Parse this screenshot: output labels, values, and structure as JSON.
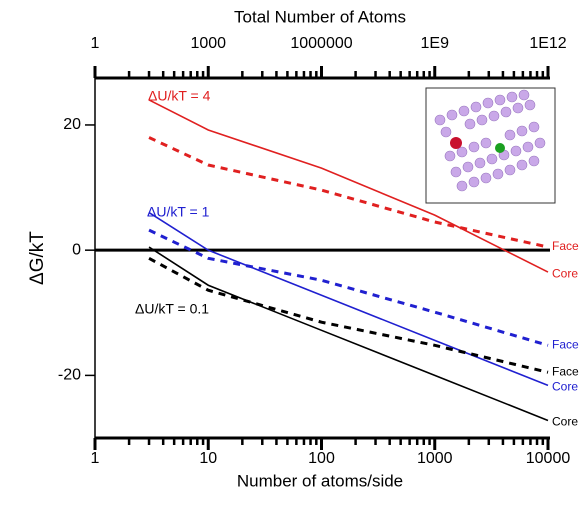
{
  "chart_data": {
    "type": "line",
    "title": "Total Number of Atoms",
    "x_label": "Number of atoms/side",
    "y_label": "ΔG/kT",
    "log_x": true,
    "x": [
      3,
      10,
      100,
      1000,
      10000
    ],
    "xlim": [
      1,
      10000
    ],
    "xticks": [
      1,
      10,
      100,
      1000,
      10000
    ],
    "x2lim": [
      1,
      1000000000000
    ],
    "x2ticks": [
      1,
      1000,
      1000000,
      {
        "value": 1000000000,
        "label": "1E9"
      },
      {
        "value": 1000000000000,
        "label": "1E12"
      }
    ],
    "ylim": [
      -30,
      27.5
    ],
    "yticks": [
      -20,
      0,
      20
    ],
    "annotations": [
      {
        "text": "ΔU/kT = 4",
        "color": "#e02020"
      },
      {
        "text": "ΔU/kT = 1",
        "color": "#2020d0"
      },
      {
        "text": "ΔU/kT = 0.1",
        "color": "#000000"
      }
    ],
    "series": [
      {
        "name": "Core",
        "color": "#e02020",
        "dashed": false,
        "values": [
          24,
          19.2,
          13.1,
          5.6,
          -3.5
        ]
      },
      {
        "name": "Face",
        "color": "#e02020",
        "dashed": true,
        "values": [
          18,
          13.6,
          9.6,
          4.5,
          0.5
        ]
      },
      {
        "name": "Core",
        "color": "#2020d0",
        "dashed": false,
        "values": [
          6,
          0,
          -7.2,
          -14.4,
          -21.6
        ]
      },
      {
        "name": "Face",
        "color": "#2020d0",
        "dashed": true,
        "values": [
          3.2,
          -1.3,
          -4.8,
          -9.9,
          -15.2
        ]
      },
      {
        "name": "Core",
        "color": "#000000",
        "dashed": false,
        "values": [
          0.5,
          -5.6,
          -12.8,
          -20,
          -27.2
        ]
      },
      {
        "name": "Face",
        "color": "#000000",
        "dashed": true,
        "values": [
          -1.3,
          -6.4,
          -11.5,
          -15.2,
          -19.5
        ]
      }
    ]
  }
}
